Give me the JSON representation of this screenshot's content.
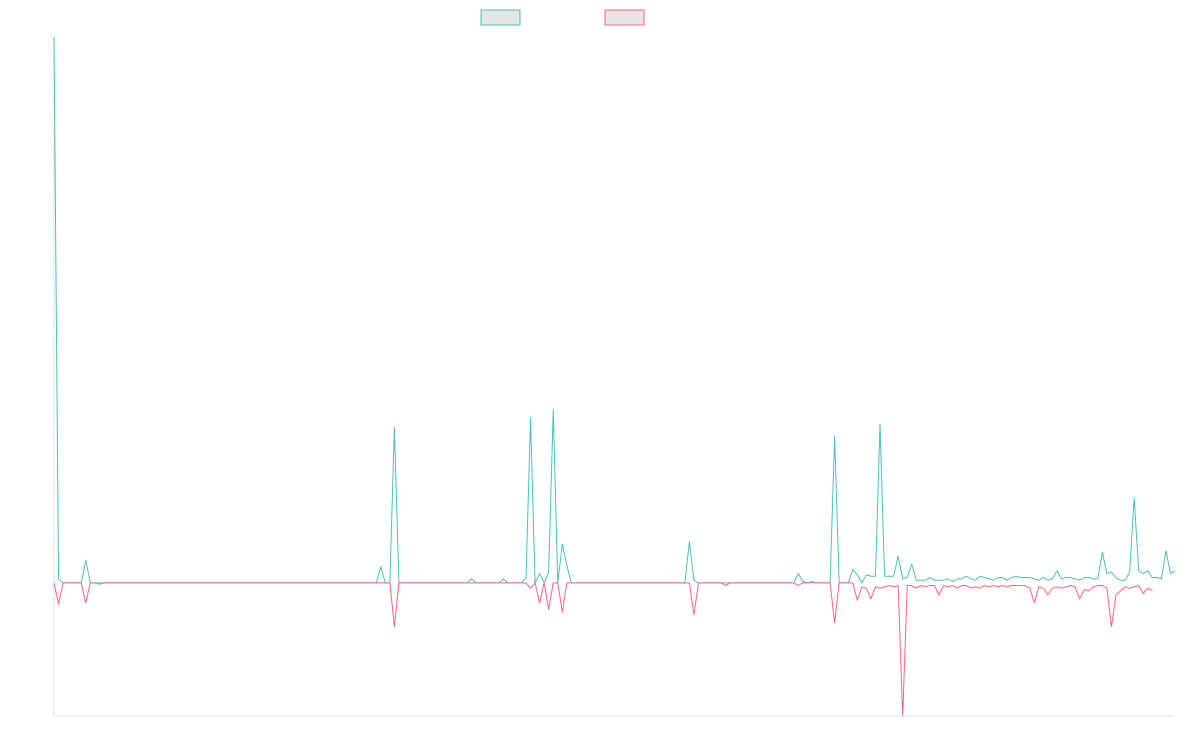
{
  "chart_data": {
    "type": "line",
    "title": "",
    "xlabel": "",
    "ylabel": "",
    "grid": false,
    "legend_position": "top-center",
    "ylim": [
      -1,
      4.1
    ],
    "series": [
      {
        "color": "#4bc0c0",
        "fill": "#e6e6e6",
        "values": [
          4.1,
          0.03,
          0,
          0,
          0,
          0,
          0,
          0.17,
          0,
          0,
          0,
          0,
          0,
          0,
          0,
          0,
          0,
          0,
          0,
          0,
          0,
          0,
          0,
          0,
          0,
          0,
          0,
          0,
          0,
          0,
          0,
          0,
          0,
          0,
          0,
          0,
          0,
          0,
          0,
          0,
          0,
          0,
          0,
          0,
          0,
          0,
          0,
          0,
          0,
          0,
          0,
          0,
          0,
          0,
          0,
          0,
          0,
          0,
          0,
          0,
          0,
          0,
          0,
          0,
          0,
          0,
          0,
          0,
          0,
          0,
          0,
          0,
          0.12,
          0,
          0,
          1.17,
          0,
          0,
          0,
          0,
          0,
          0,
          0,
          0,
          0,
          0,
          0,
          0,
          0,
          0,
          0,
          0,
          0.03,
          0,
          0,
          0,
          0,
          0,
          0,
          0.03,
          0,
          0,
          0,
          0,
          0.04,
          1.24,
          0,
          0.07,
          0,
          0.08,
          1.3,
          0,
          0.29,
          0.13,
          0,
          0,
          0,
          0,
          0,
          0,
          0,
          0,
          0,
          0,
          0,
          0,
          0,
          0,
          0,
          0,
          0,
          0,
          0,
          0,
          0,
          0,
          0,
          0,
          0,
          0,
          0.31,
          0.02,
          0,
          0,
          0,
          0,
          0,
          0,
          0,
          0,
          0,
          0,
          0,
          0,
          0,
          0,
          0,
          0,
          0,
          0,
          0,
          0,
          0,
          0,
          0.07,
          0.01,
          0,
          0.01,
          0,
          0,
          0,
          0,
          1.1,
          0,
          0,
          0,
          0.1,
          0.06,
          0,
          0.06,
          0.05,
          0.05,
          1.19,
          0.05,
          0.05,
          0.05,
          0.2,
          0.03,
          0.04,
          0.14,
          0.02,
          0.02,
          0.02,
          0.04,
          0.02,
          0.02,
          0.02,
          0.03,
          0.01,
          0.03,
          0.03,
          0.05,
          0.03,
          0.02,
          0.05,
          0.04,
          0.03,
          0.02,
          0.04,
          0.04,
          0.02,
          0.04,
          0.05,
          0.04,
          0.04,
          0.04,
          0.03,
          0.02,
          0.04,
          0.02,
          0.03,
          0.09,
          0.03,
          0.04,
          0.04,
          0.03,
          0.02,
          0.04,
          0.04,
          0.03,
          0.03,
          0.23,
          0.07,
          0.08,
          0.04,
          0.02,
          0.02,
          0.08,
          0.64,
          0.09,
          0.07,
          0.09,
          0.04,
          0.04,
          0.03,
          0.24,
          0.07,
          0.09
        ]
      },
      {
        "color": "#ff6384",
        "fill": "#e6e6e6",
        "values": [
          0,
          -0.16,
          0,
          0,
          0,
          0,
          0,
          -0.15,
          0,
          0,
          -0.01,
          0,
          0,
          0,
          0,
          0,
          0,
          0,
          0,
          0,
          0,
          0,
          0,
          0,
          0,
          0,
          0,
          0,
          0,
          0,
          0,
          0,
          0,
          0,
          0,
          0,
          0,
          0,
          0,
          0,
          0,
          0,
          0,
          0,
          0,
          0,
          0,
          0,
          0,
          0,
          0,
          0,
          0,
          0,
          0,
          0,
          0,
          0,
          0,
          0,
          0,
          0,
          0,
          0,
          0,
          0,
          0,
          0,
          0,
          0,
          0,
          0,
          0,
          0,
          0,
          -0.33,
          0,
          0,
          0,
          0,
          0,
          0,
          0,
          0,
          0,
          0,
          0,
          0,
          0,
          0,
          0,
          0,
          0,
          0,
          0,
          0,
          0,
          0,
          0,
          0,
          0,
          0,
          0,
          0,
          0,
          -0.04,
          0,
          -0.15,
          0,
          -0.2,
          0,
          0,
          -0.22,
          0,
          0,
          0,
          0,
          0,
          0,
          0,
          0,
          0,
          0,
          0,
          0,
          0,
          0,
          0,
          0,
          0,
          0,
          0,
          0,
          0,
          0,
          0,
          0,
          0,
          0,
          0,
          0,
          -0.24,
          0,
          0,
          0,
          0,
          0,
          0,
          -0.02,
          0,
          0,
          0,
          0,
          0,
          0,
          0,
          0,
          0,
          0,
          0,
          0,
          0,
          0,
          0,
          -0.02,
          0,
          0,
          0,
          0,
          0,
          0,
          0,
          -0.3,
          0,
          0,
          0,
          0,
          -0.13,
          -0.03,
          -0.04,
          -0.12,
          -0.03,
          -0.04,
          -0.03,
          -0.02,
          -0.03,
          -0.02,
          -1.0,
          -0.02,
          -0.02,
          -0.04,
          -0.02,
          -0.03,
          -0.02,
          -0.02,
          -0.09,
          -0.02,
          -0.03,
          -0.02,
          -0.04,
          -0.02,
          -0.02,
          -0.04,
          -0.03,
          -0.04,
          -0.02,
          -0.03,
          -0.02,
          -0.03,
          -0.02,
          -0.03,
          -0.02,
          -0.02,
          -0.02,
          -0.02,
          -0.04,
          -0.15,
          -0.03,
          -0.04,
          -0.09,
          -0.04,
          -0.03,
          -0.04,
          -0.03,
          -0.02,
          -0.03,
          -0.12,
          -0.05,
          -0.06,
          -0.03,
          -0.02,
          -0.02,
          -0.04,
          -0.33,
          -0.09,
          -0.06,
          -0.03,
          -0.04,
          -0.03,
          -0.02,
          -0.08,
          -0.04,
          -0.06
        ]
      }
    ]
  }
}
